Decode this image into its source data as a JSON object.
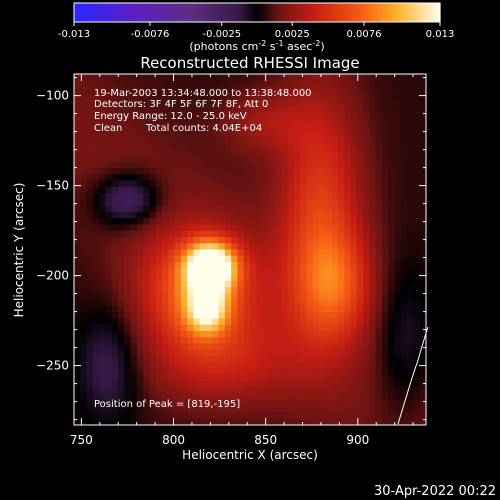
{
  "chart_data": {
    "type": "heatmap",
    "title": "Reconstructed RHESSI Image",
    "xlabel": "Heliocentric X (arcsec)",
    "ylabel": "Heliocentric Y (arcsec)",
    "x_ticks": [
      750,
      800,
      850,
      900
    ],
    "y_ticks": [
      -100,
      -150,
      -200,
      -250
    ],
    "xlim": [
      746,
      937
    ],
    "ylim": [
      -283,
      -88
    ],
    "colorbar": {
      "ticks": [
        "-0.013",
        "-0.0076",
        "-0.0025",
        "0.0025",
        "0.0076",
        "0.013"
      ],
      "range": [
        -0.013,
        0.013
      ],
      "units_label_parts": [
        "(photons cm",
        "-2",
        " s",
        "-1",
        " asec",
        "-2",
        ")"
      ]
    },
    "annotations": {
      "time_range": "19-Mar-2003 13:34:48.000 to 13:38:48.000",
      "detectors": "Detectors: 3F 4F 5F 6F 7F 8F, Att 0",
      "energy_range": "Energy Range: 12.0 - 25.0 keV",
      "clean": "Clean",
      "total_counts": "Total counts: 4.04E+04",
      "peak": "Position of Peak = [819,-195]"
    },
    "peak_position": [
      819,
      -195
    ],
    "sources": [
      {
        "x": 820,
        "y": -195,
        "sx": 9,
        "sy": 9,
        "amp": 0.0135
      },
      {
        "x": 818,
        "y": -218,
        "sx": 8,
        "sy": 10,
        "amp": 0.008
      },
      {
        "x": 812,
        "y": -208,
        "sx": 22,
        "sy": 22,
        "amp": 0.006
      },
      {
        "x": 880,
        "y": -165,
        "sx": 16,
        "sy": 48,
        "amp": 0.005
      },
      {
        "x": 888,
        "y": -205,
        "sx": 14,
        "sy": 20,
        "amp": 0.004
      },
      {
        "x": 825,
        "y": -248,
        "sx": 30,
        "sy": 18,
        "amp": 0.003
      },
      {
        "x": 850,
        "y": -115,
        "sx": 16,
        "sy": 12,
        "amp": 0.0022
      },
      {
        "x": 775,
        "y": -158,
        "sx": 12,
        "sy": 10,
        "amp": -0.004
      },
      {
        "x": 765,
        "y": -250,
        "sx": 12,
        "sy": 22,
        "amp": -0.0025
      },
      {
        "x": 925,
        "y": -240,
        "sx": 12,
        "sy": 30,
        "amp": -0.002
      }
    ],
    "background": 0.0006
  },
  "footer": {
    "date": "30-Apr-2022 00:22"
  }
}
